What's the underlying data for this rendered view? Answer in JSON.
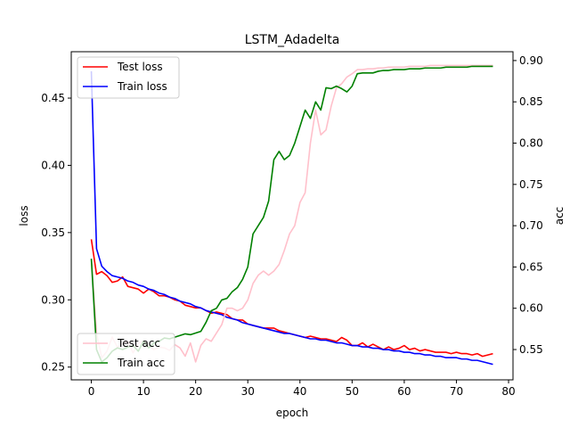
{
  "chart_data": {
    "type": "line",
    "title": "LSTM_Adadelta",
    "xlabel": "epoch",
    "ylabel_left": "loss",
    "ylabel_right": "acc",
    "xlim": [
      -3.85,
      80.85
    ],
    "ylim_left": [
      0.2405,
      0.4845
    ],
    "ylim_right": [
      0.5133,
      0.9107
    ],
    "x_ticks": [
      0,
      10,
      20,
      30,
      40,
      50,
      60,
      70,
      80
    ],
    "y_left_ticks": [
      0.25,
      0.3,
      0.35,
      0.4,
      0.45
    ],
    "y_left_tick_labels": [
      "0.25",
      "0.30",
      "0.35",
      "0.40",
      "0.45"
    ],
    "y_right_ticks": [
      0.55,
      0.6,
      0.65,
      0.7,
      0.75,
      0.8,
      0.85,
      0.9
    ],
    "y_right_tick_labels": [
      "0.55",
      "0.60",
      "0.65",
      "0.70",
      "0.75",
      "0.80",
      "0.85",
      "0.90"
    ],
    "grid": false,
    "legend_left": {
      "placement": "top-left",
      "entries": [
        "Test loss",
        "Train loss"
      ]
    },
    "legend_right": {
      "placement": "bottom-left",
      "entries": [
        "Test acc",
        "Train acc"
      ]
    },
    "series": [
      {
        "name": "Test loss",
        "axis": "left",
        "color": "#ff0000",
        "values": [
          0.345,
          0.319,
          0.321,
          0.318,
          0.313,
          0.314,
          0.317,
          0.31,
          0.309,
          0.308,
          0.305,
          0.308,
          0.306,
          0.303,
          0.303,
          0.302,
          0.3,
          0.299,
          0.296,
          0.295,
          0.294,
          0.294,
          0.292,
          0.29,
          0.291,
          0.29,
          0.289,
          0.286,
          0.285,
          0.285,
          0.282,
          0.281,
          0.28,
          0.279,
          0.279,
          0.279,
          0.277,
          0.276,
          0.275,
          0.274,
          0.273,
          0.272,
          0.273,
          0.272,
          0.271,
          0.271,
          0.27,
          0.269,
          0.272,
          0.27,
          0.266,
          0.266,
          0.268,
          0.265,
          0.267,
          0.265,
          0.263,
          0.265,
          0.263,
          0.264,
          0.266,
          0.263,
          0.264,
          0.262,
          0.263,
          0.262,
          0.261,
          0.261,
          0.261,
          0.26,
          0.261,
          0.26,
          0.26,
          0.259,
          0.26,
          0.258,
          0.259,
          0.26
        ]
      },
      {
        "name": "Train loss",
        "axis": "left",
        "color": "#0000ff",
        "values": [
          0.47,
          0.338,
          0.325,
          0.321,
          0.318,
          0.317,
          0.316,
          0.314,
          0.313,
          0.311,
          0.31,
          0.308,
          0.307,
          0.305,
          0.304,
          0.302,
          0.301,
          0.299,
          0.298,
          0.297,
          0.295,
          0.294,
          0.292,
          0.291,
          0.29,
          0.289,
          0.287,
          0.286,
          0.285,
          0.283,
          0.282,
          0.281,
          0.28,
          0.279,
          0.278,
          0.277,
          0.276,
          0.275,
          0.275,
          0.274,
          0.273,
          0.272,
          0.271,
          0.271,
          0.27,
          0.27,
          0.269,
          0.268,
          0.268,
          0.267,
          0.266,
          0.266,
          0.265,
          0.265,
          0.264,
          0.264,
          0.263,
          0.263,
          0.262,
          0.262,
          0.261,
          0.261,
          0.26,
          0.26,
          0.259,
          0.259,
          0.258,
          0.258,
          0.257,
          0.257,
          0.257,
          0.256,
          0.256,
          0.255,
          0.255,
          0.254,
          0.253,
          0.252
        ]
      },
      {
        "name": "Test acc",
        "axis": "right",
        "color": "#ffc0cb",
        "values": [
          0.66,
          0.57,
          0.54,
          0.548,
          0.565,
          0.553,
          0.557,
          0.56,
          0.546,
          0.558,
          0.56,
          0.554,
          0.55,
          0.553,
          0.552,
          0.549,
          0.556,
          0.552,
          0.542,
          0.558,
          0.535,
          0.555,
          0.563,
          0.56,
          0.57,
          0.58,
          0.6,
          0.6,
          0.597,
          0.6,
          0.61,
          0.63,
          0.64,
          0.645,
          0.64,
          0.645,
          0.653,
          0.67,
          0.69,
          0.7,
          0.728,
          0.74,
          0.8,
          0.84,
          0.81,
          0.816,
          0.845,
          0.867,
          0.872,
          0.88,
          0.884,
          0.889,
          0.889,
          0.89,
          0.89,
          0.891,
          0.891,
          0.892,
          0.892,
          0.892,
          0.892,
          0.893,
          0.893,
          0.893,
          0.893,
          0.894,
          0.894,
          0.894,
          0.894,
          0.894,
          0.894,
          0.894,
          0.894,
          0.894,
          0.894,
          0.894,
          0.894,
          0.894
        ]
      },
      {
        "name": "Train acc",
        "axis": "right",
        "color": "#008000",
        "values": [
          0.66,
          0.55,
          0.535,
          0.54,
          0.548,
          0.552,
          0.55,
          0.553,
          0.555,
          0.548,
          0.56,
          0.552,
          0.558,
          0.56,
          0.564,
          0.563,
          0.565,
          0.567,
          0.569,
          0.568,
          0.57,
          0.572,
          0.583,
          0.597,
          0.6,
          0.61,
          0.612,
          0.62,
          0.625,
          0.635,
          0.65,
          0.69,
          0.7,
          0.71,
          0.73,
          0.78,
          0.79,
          0.78,
          0.785,
          0.8,
          0.82,
          0.84,
          0.83,
          0.85,
          0.84,
          0.867,
          0.866,
          0.869,
          0.866,
          0.862,
          0.869,
          0.884,
          0.885,
          0.885,
          0.885,
          0.887,
          0.888,
          0.888,
          0.889,
          0.889,
          0.889,
          0.89,
          0.89,
          0.89,
          0.891,
          0.891,
          0.891,
          0.891,
          0.892,
          0.892,
          0.892,
          0.892,
          0.892,
          0.893,
          0.893,
          0.893,
          0.893,
          0.893
        ]
      }
    ]
  }
}
